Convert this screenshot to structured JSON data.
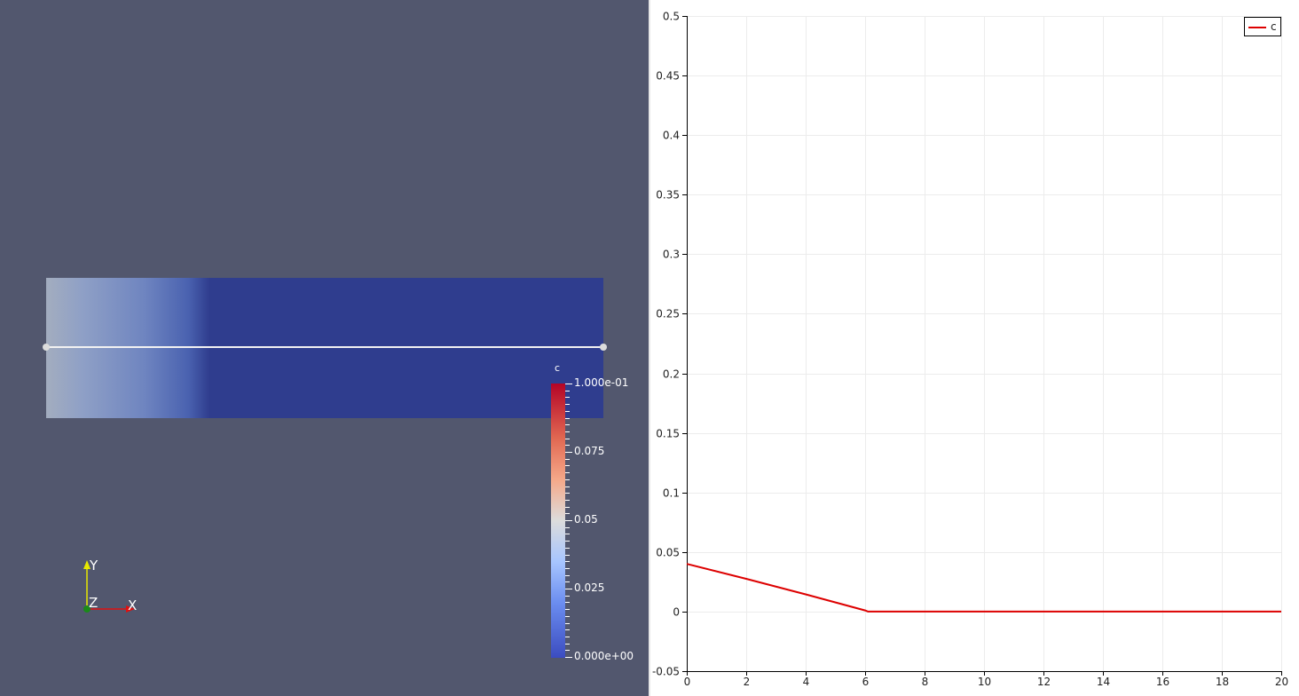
{
  "render_view": {
    "background_color": "#52576e",
    "scalar_bar": {
      "title": "c",
      "labels": [
        "1.000e-01",
        "0.075",
        "0.05",
        "0.025",
        "0.000e+00"
      ],
      "range": [
        0.0,
        0.1
      ],
      "colormap": "Cool to Warm"
    },
    "orientation_axes": {
      "x_label": "X",
      "y_label": "Y",
      "z_label": "Z"
    }
  },
  "chart_data": {
    "type": "line",
    "x_ticks": [
      "0",
      "2",
      "4",
      "6",
      "8",
      "10",
      "12",
      "14",
      "16",
      "18",
      "20"
    ],
    "y_ticks": [
      "-0.05",
      "0",
      "0.05",
      "0.1",
      "0.15",
      "0.2",
      "0.25",
      "0.3",
      "0.35",
      "0.4",
      "0.45",
      "0.5"
    ],
    "xlim": [
      0,
      20
    ],
    "ylim": [
      -0.05,
      0.5
    ],
    "grid": true,
    "legend_position": "top-right",
    "series": [
      {
        "name": "c",
        "color": "#dd0000",
        "x": [
          0,
          2,
          4,
          6,
          6.1,
          8,
          10,
          12,
          14,
          16,
          18,
          20
        ],
        "y": [
          0.04,
          0.0275,
          0.0145,
          0.001,
          0,
          0,
          0,
          0,
          0,
          0,
          0,
          0
        ]
      }
    ]
  }
}
